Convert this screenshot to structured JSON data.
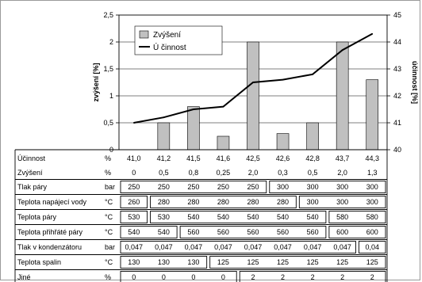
{
  "chart_data": {
    "type": "bar",
    "categories": [
      "",
      "",
      "",
      "",
      "",
      "",
      "",
      "",
      ""
    ],
    "series": [
      {
        "name": "Zvýšení",
        "type": "bar",
        "axis": "left",
        "color": "#c0c0c0",
        "values": [
          0,
          0.5,
          0.8,
          0.25,
          2.0,
          0.3,
          0.5,
          2.0,
          1.3
        ]
      },
      {
        "name": "Ú činnost",
        "type": "line",
        "axis": "right",
        "color": "#000000",
        "values": [
          41.0,
          41.2,
          41.5,
          41.6,
          42.5,
          42.6,
          42.8,
          43.7,
          44.3
        ]
      }
    ],
    "ylabel_left": "zvýšení [%]",
    "ylabel_right": "účinnost [%]",
    "ylim_left": [
      0,
      2.5
    ],
    "ylim_right": [
      40,
      45
    ],
    "yticks_left": [
      "0",
      "0,5",
      "1",
      "1,5",
      "2",
      "2,5"
    ],
    "yticks_right": [
      "40",
      "41",
      "42",
      "43",
      "44",
      "45"
    ],
    "grid": "horizontal",
    "legend_position": "top-left"
  },
  "table": {
    "rows": [
      {
        "label": "Účinnost",
        "unit": "%",
        "values": [
          "41,0",
          "41,2",
          "41,5",
          "41,6",
          "42,5",
          "42,6",
          "42,8",
          "43,7",
          "44,3"
        ],
        "groups": []
      },
      {
        "label": "Zvýšení",
        "unit": "%",
        "values": [
          "0",
          "0,5",
          "0,8",
          "0,25",
          "2,0",
          "0,3",
          "0,5",
          "2,0",
          "1,3"
        ],
        "groups": []
      },
      {
        "label": "Tlak páry",
        "unit": "bar",
        "values": [
          "250",
          "250",
          "250",
          "250",
          "250",
          "300",
          "300",
          "300",
          "300"
        ],
        "groups": [
          [
            0,
            4
          ],
          [
            5,
            8
          ]
        ]
      },
      {
        "label": "Teplota napájecí vody",
        "unit": "°C",
        "values": [
          "260",
          "280",
          "280",
          "280",
          "280",
          "280",
          "300",
          "300",
          "300"
        ],
        "groups": [
          [
            0,
            0
          ],
          [
            1,
            5
          ],
          [
            6,
            8
          ]
        ]
      },
      {
        "label": "Teplota páry",
        "unit": "°C",
        "values": [
          "530",
          "530",
          "540",
          "540",
          "540",
          "540",
          "540",
          "580",
          "580"
        ],
        "groups": [
          [
            0,
            0
          ],
          [
            1,
            6
          ],
          [
            7,
            8
          ]
        ]
      },
      {
        "label": "Teplota přihřáté páry",
        "unit": "°C",
        "values": [
          "540",
          "540",
          "560",
          "560",
          "560",
          "560",
          "560",
          "600",
          "600"
        ],
        "groups": [
          [
            0,
            1
          ],
          [
            2,
            6
          ],
          [
            7,
            8
          ]
        ]
      },
      {
        "label": "Tlak v kondenzátoru",
        "unit": "bar",
        "values": [
          "0,047",
          "0,047",
          "0,047",
          "0,047",
          "0,047",
          "0,047",
          "0,047",
          "0,047",
          "0,04"
        ],
        "groups": [
          [
            0,
            7
          ],
          [
            8,
            8
          ]
        ]
      },
      {
        "label": "Teplota spalin",
        "unit": "°C",
        "values": [
          "130",
          "130",
          "130",
          "125",
          "125",
          "125",
          "125",
          "125",
          "125"
        ],
        "groups": [
          [
            0,
            2
          ],
          [
            3,
            8
          ]
        ]
      },
      {
        "label": "Jiné",
        "unit": "%",
        "values": [
          "0",
          "0",
          "0",
          "0",
          "2",
          "2",
          "2",
          "2",
          "2"
        ],
        "groups": [
          [
            0,
            3
          ],
          [
            4,
            8
          ]
        ]
      }
    ]
  }
}
